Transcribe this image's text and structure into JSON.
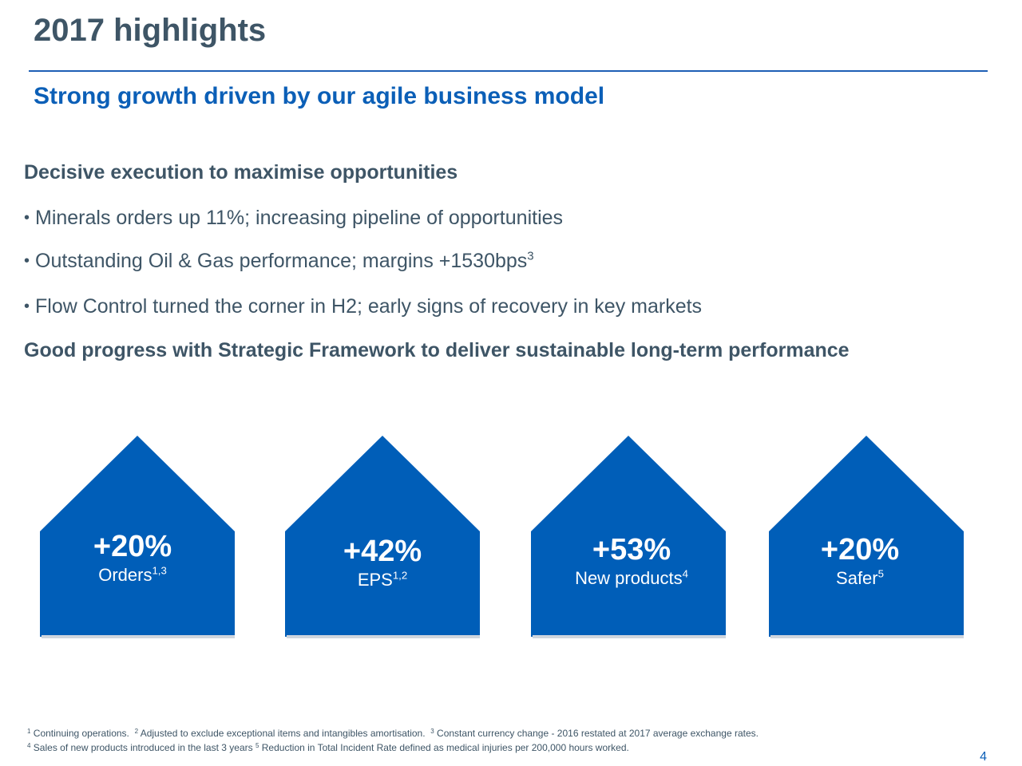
{
  "slide": {
    "title": "2017 highlights",
    "subtitle": "Strong growth driven by our agile business model",
    "heading1": "Decisive execution to maximise opportunities",
    "bullets": [
      {
        "text": "Minerals orders up 11%; increasing pipeline of opportunities",
        "sup": ""
      },
      {
        "text": "Outstanding Oil & Gas performance; margins +1530bps",
        "sup": "3"
      },
      {
        "text": "Flow Control turned the corner in H2; early signs of recovery in key markets",
        "sup": ""
      }
    ],
    "heading2": "Good progress with Strategic Framework to deliver sustainable long-term performance",
    "bullet_char": "•"
  },
  "highlights": [
    {
      "value": "+20%",
      "label": "Orders",
      "sup": "1,3"
    },
    {
      "value": "+42%",
      "label": "EPS",
      "sup": "1,2"
    },
    {
      "value": "+53%",
      "label": "New products",
      "sup": "4"
    },
    {
      "value": "+20%",
      "label": "Safer",
      "sup": "5"
    }
  ],
  "footnotes": {
    "line1": [
      {
        "sup": "1",
        "text": "Continuing operations."
      },
      {
        "sup": "2",
        "text": "Adjusted to exclude exceptional items and intangibles amortisation."
      },
      {
        "sup": "3",
        "text": "Constant currency change - 2016 restated at 2017 average exchange rates."
      }
    ],
    "line2": [
      {
        "sup": "4",
        "text": "Sales of new products introduced in the last 3 years"
      },
      {
        "sup": "5",
        "text": "Reduction in Total Incident Rate defined as medical injuries per 200,000 hours worked."
      }
    ]
  },
  "page_number": "4",
  "colors": {
    "house_fill": "#005eb8",
    "title": "#3e5566",
    "accent": "#0b5fb7"
  }
}
